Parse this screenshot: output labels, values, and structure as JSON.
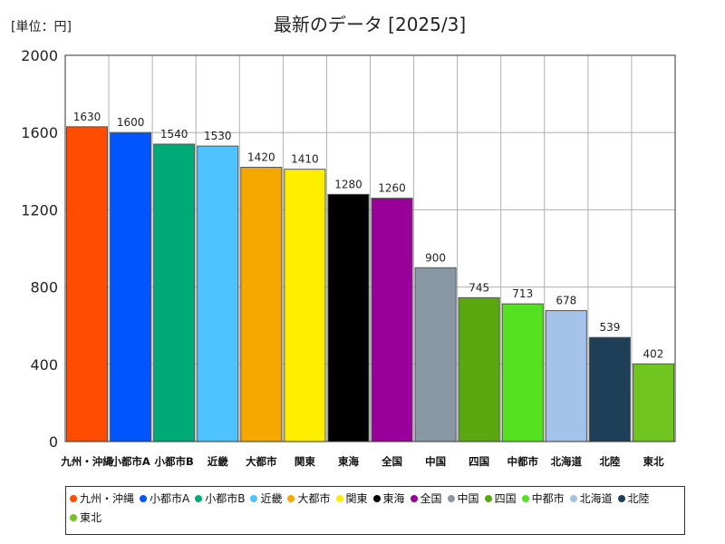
{
  "chart_data": {
    "type": "bar",
    "title": "最新のデータ [2025/3]",
    "unit_label": "[単位：円]",
    "categories": [
      "九州・沖縄",
      "小都市A",
      "小都市B",
      "近畿",
      "大都市",
      "関東",
      "東海",
      "全国",
      "中国",
      "四国",
      "中都市",
      "北海道",
      "北陸",
      "東北"
    ],
    "values": [
      1630,
      1600,
      1540,
      1530,
      1420,
      1410,
      1280,
      1260,
      900,
      745,
      713,
      678,
      539,
      402
    ],
    "colors": [
      "#ff4c00",
      "#0055ff",
      "#00aa77",
      "#4fc3ff",
      "#f5a800",
      "#ffee00",
      "#000000",
      "#990099",
      "#8898a4",
      "#5aa810",
      "#55e020",
      "#a4c2ea",
      "#1f3f58",
      "#6fc41e"
    ],
    "ylim": [
      0,
      2000
    ],
    "yticks": [
      0,
      400,
      800,
      1200,
      1600,
      2000
    ],
    "grid": true,
    "legend_position": "bottom"
  }
}
